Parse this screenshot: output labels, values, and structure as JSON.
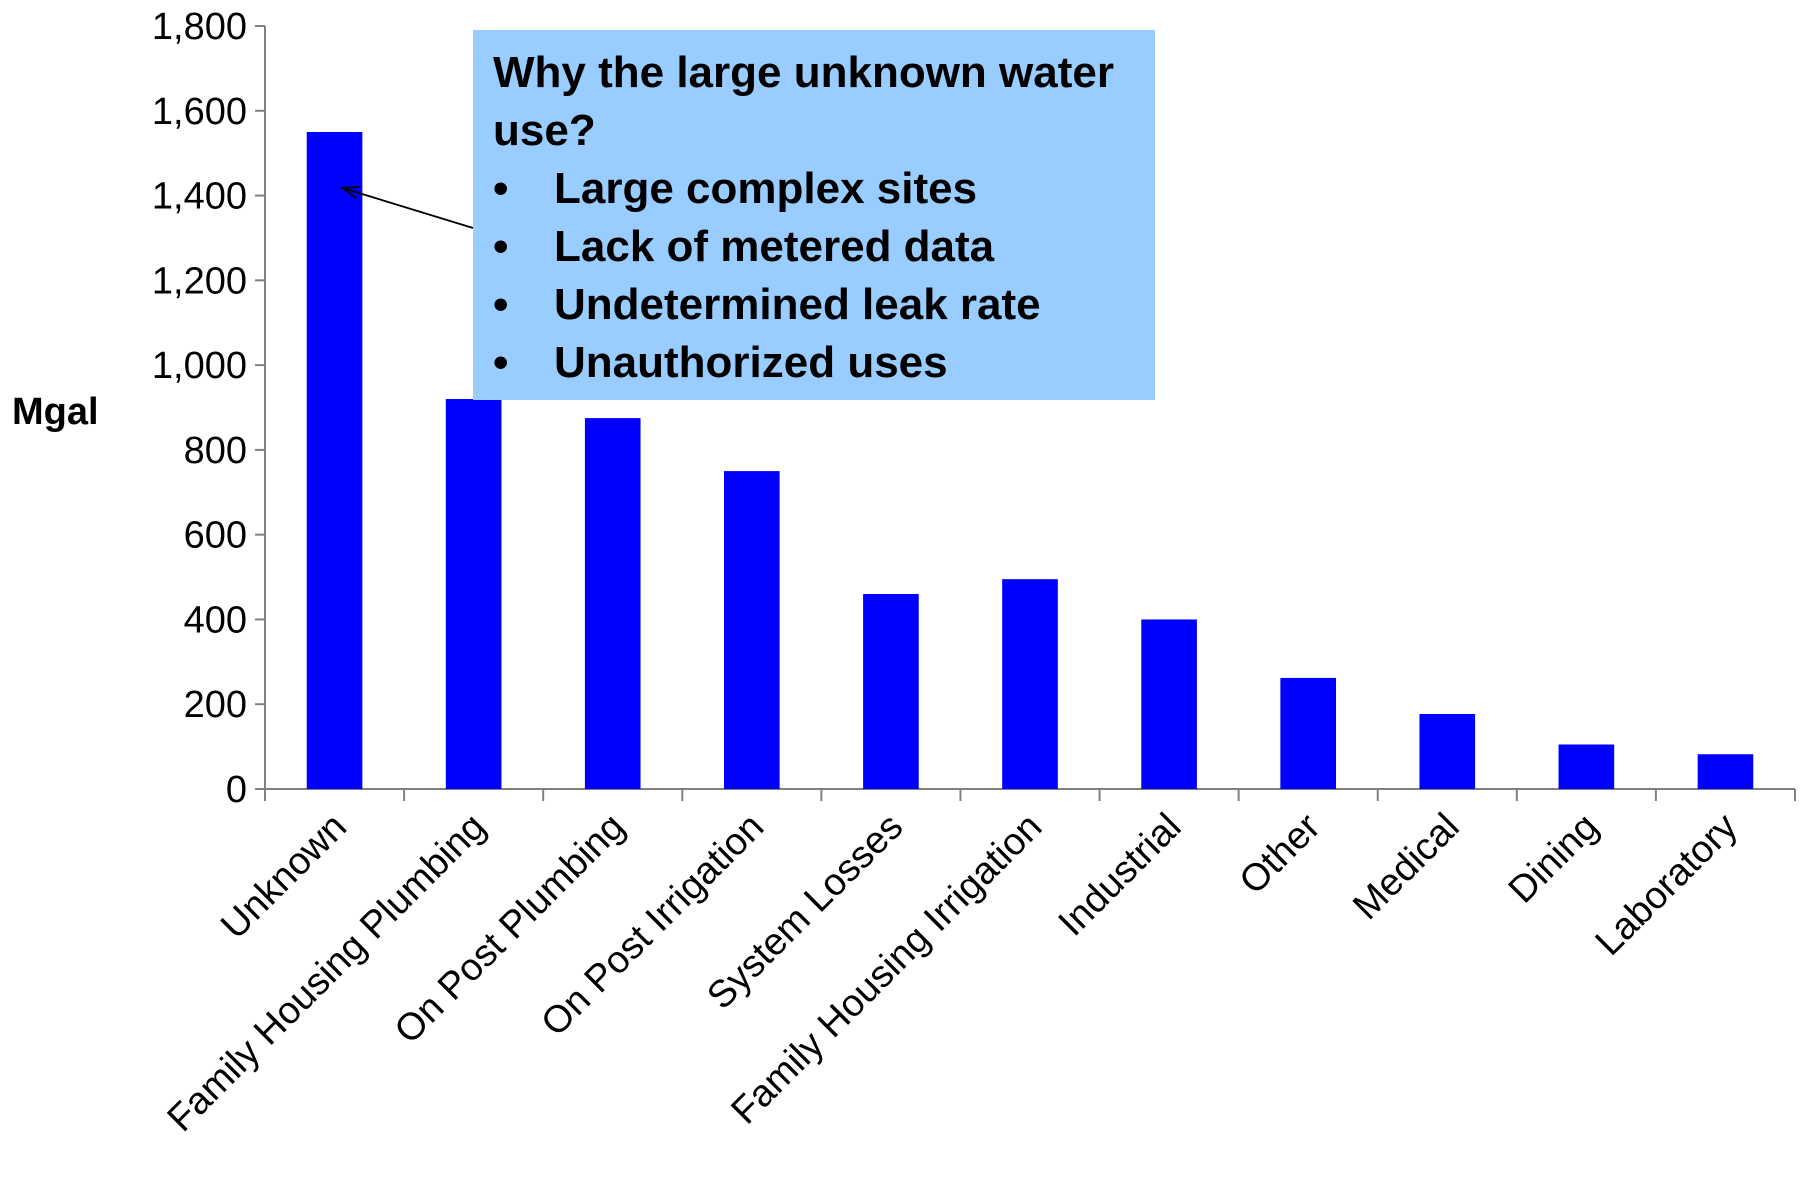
{
  "chart_data": {
    "type": "bar",
    "categories": [
      "Unknown",
      "Family Housing Plumbing",
      "On Post Plumbing",
      "On Post Irrigation",
      "System Losses",
      "Family Housing Irrigation",
      "Industrial",
      "Other",
      "Medical",
      "Dining",
      "Laboratory"
    ],
    "values": [
      1550,
      920,
      875,
      750,
      460,
      495,
      400,
      262,
      177,
      105,
      82
    ],
    "title": "",
    "xlabel": "",
    "ylabel": "Mgal",
    "ylim": [
      0,
      1800
    ],
    "yticks": [
      0,
      200,
      400,
      600,
      800,
      1000,
      1200,
      1400,
      1600,
      1800
    ],
    "ytick_labels": [
      "0",
      "200",
      "400",
      "600",
      "800",
      "1,000",
      "1,200",
      "1,400",
      "1,600",
      "1,800"
    ],
    "bar_color": "#0000ff",
    "grid": false,
    "legend": "none",
    "annotation": {
      "title": "Why the large unknown water use?",
      "bullets": [
        "Large complex sites",
        "Lack of metered data",
        "Undetermined leak rate",
        "Unauthorized uses"
      ],
      "bullet_symbol": "•",
      "background": "#99ccff",
      "arrow_target_category": "Unknown"
    }
  }
}
